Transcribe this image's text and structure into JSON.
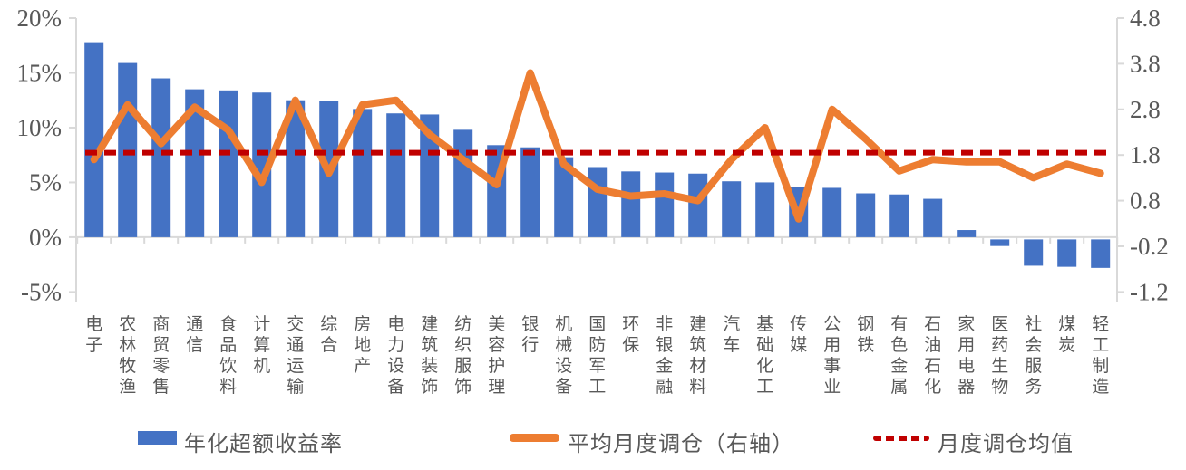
{
  "chart_data": {
    "type": "bar",
    "combo": "bar+line, dual axis",
    "title": "",
    "categories": [
      "电子",
      "农林牧渔",
      "商贸零售",
      "通信",
      "食品饮料",
      "计算机",
      "交通运输",
      "综合",
      "房地产",
      "电力设备",
      "建筑装饰",
      "纺织服饰",
      "美容护理",
      "银行",
      "机械设备",
      "国防军工",
      "环保",
      "非银金融",
      "建筑材料",
      "汽车",
      "基础化工",
      "传媒",
      "公用事业",
      "钢铁",
      "有色金属",
      "石油石化",
      "家用电器",
      "医药生物",
      "社会服务",
      "煤炭",
      "轻工制造"
    ],
    "series": [
      {
        "name": "年化超额收益率",
        "type": "bar",
        "axis": "left",
        "unit": "%",
        "color": "#4472C4",
        "values": [
          17.8,
          15.9,
          14.5,
          13.5,
          13.4,
          13.2,
          12.5,
          12.4,
          11.7,
          11.3,
          11.2,
          9.8,
          8.4,
          8.2,
          7.3,
          6.4,
          6.0,
          5.9,
          5.8,
          5.1,
          5.0,
          4.6,
          4.5,
          4.0,
          3.9,
          3.5,
          0.65,
          -0.6,
          -2.4,
          -2.5,
          -2.6
        ]
      },
      {
        "name": "平均月度调仓（右轴）",
        "type": "line",
        "axis": "right",
        "color": "#ED7D31",
        "values": [
          1.7,
          2.9,
          2.05,
          2.85,
          2.35,
          1.2,
          3.0,
          1.4,
          2.9,
          3.0,
          2.25,
          1.7,
          1.15,
          3.6,
          1.6,
          1.05,
          0.9,
          0.95,
          0.8,
          1.7,
          2.4,
          0.4,
          2.8,
          2.15,
          1.45,
          1.7,
          1.65,
          1.65,
          1.3,
          1.6,
          1.4
        ]
      },
      {
        "name": "月度调仓均值",
        "type": "hline-dashed",
        "axis": "right",
        "color": "#C00000",
        "value": 1.85
      }
    ],
    "left_axis": {
      "ticks": [
        "20%",
        "15%",
        "10%",
        "5%",
        "0%",
        "-5%"
      ],
      "values": [
        20,
        15,
        10,
        5,
        0,
        -5
      ],
      "min": -5,
      "max": 20
    },
    "right_axis": {
      "ticks": [
        "4.8",
        "3.8",
        "2.8",
        "1.8",
        "0.8",
        "-0.2",
        "-1.2"
      ],
      "values": [
        4.8,
        3.8,
        2.8,
        1.8,
        0.8,
        -0.2,
        -1.2
      ],
      "min": -1.2,
      "max": 4.8
    },
    "grid": "off",
    "legend_position": "bottom"
  },
  "legend": {
    "items": [
      {
        "label": "年化超额收益率",
        "marker": "bar",
        "color": "#4472C4"
      },
      {
        "label": "平均月度调仓（右轴）",
        "marker": "line",
        "color": "#ED7D31"
      },
      {
        "label": "月度调仓均值",
        "marker": "dashed-line",
        "color": "#C00000"
      }
    ]
  },
  "colors": {
    "bar": "#4472C4",
    "line": "#ED7D31",
    "mean_line": "#C00000",
    "axis_text": "#595959",
    "axis_line": "#D9D9D9"
  }
}
